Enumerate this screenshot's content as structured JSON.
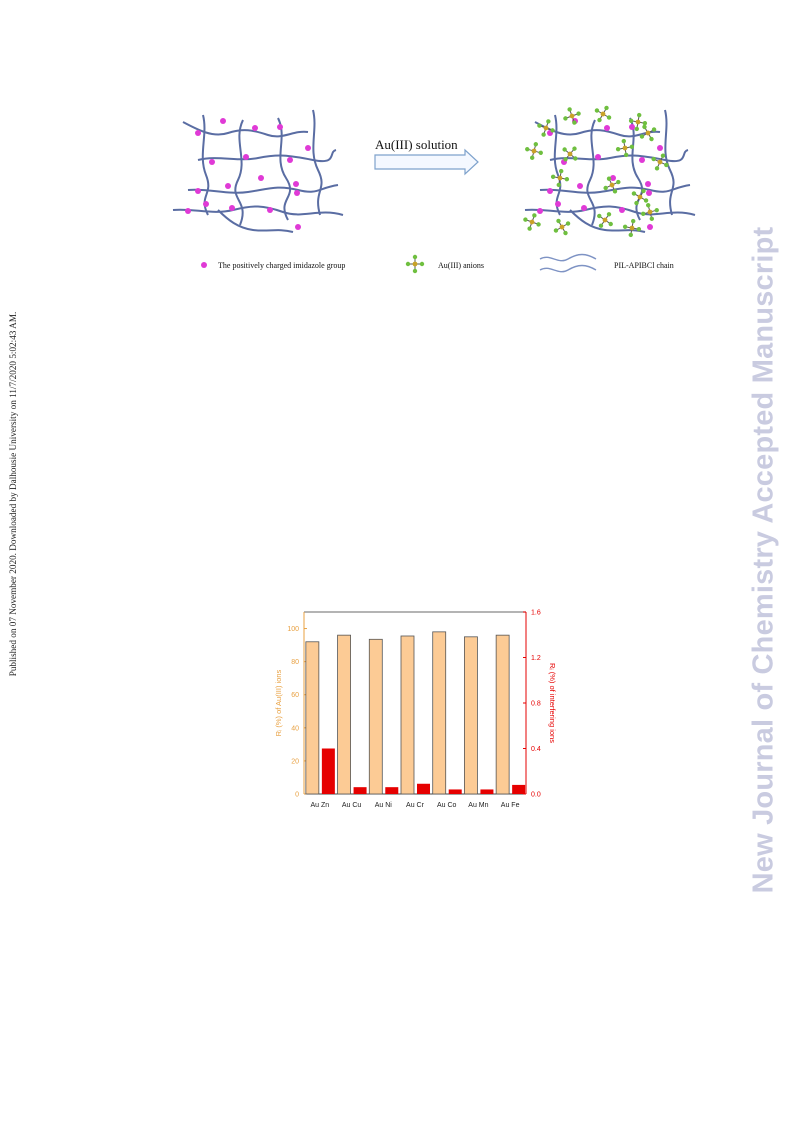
{
  "side_note": "Published on 07 November 2020. Downloaded by Dalhousie University on 11/7/2020 5:02:43 AM.",
  "watermark": "New Journal of Chemistry Accepted Manuscript",
  "scheme": {
    "arrow_label": "Au(III) solution",
    "legend": {
      "imidazole": "The positively charged imidazole group",
      "anions": "Au(III) anions",
      "chain": "PIL-APIBCl chain"
    },
    "colors": {
      "chain": "#5a6da3",
      "imidazole": "#e03ad6",
      "gold_center": "#c9a227",
      "anion_arm": "#6fbf3f"
    }
  },
  "chart_data": {
    "type": "bar",
    "categories": [
      "Au Zn",
      "Au Cu",
      "Au  Ni",
      "Au Cr",
      "Au Co",
      "Au Mn",
      "Au Fe"
    ],
    "series": [
      {
        "name": "Au(III)",
        "axis": "left",
        "color": "#fccb95",
        "values": [
          92,
          96,
          93.5,
          95.5,
          98,
          95,
          96
        ]
      },
      {
        "name": "interfering ions",
        "axis": "right",
        "color": "#e60000",
        "values": [
          0.4,
          0.06,
          0.06,
          0.09,
          0.04,
          0.04,
          0.08
        ]
      }
    ],
    "ylabel_left": "Rᵢ (%) of Au(III) ions",
    "ylabel_right": "Rᵢ (%) of interfering ions",
    "ylim_left": [
      0,
      110
    ],
    "ylim_right": [
      0,
      1.6
    ],
    "yticks_left": [
      "0",
      "20",
      "40",
      "60",
      "80",
      "100"
    ],
    "yticks_right": [
      "0.0",
      "0.4",
      "0.8",
      "1.2",
      "1.6"
    ],
    "left_axis_color": "#e8a040",
    "right_axis_color": "#e60000"
  }
}
